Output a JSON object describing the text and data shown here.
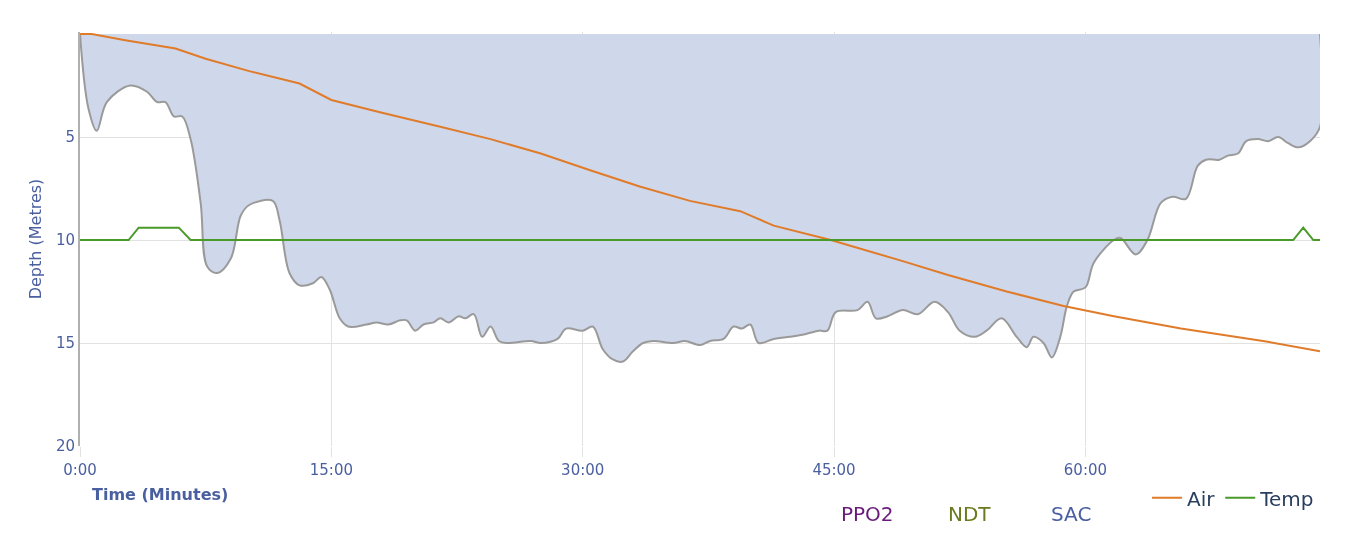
{
  "chart_data": {
    "type": "area",
    "xlabel": "Time (Minutes)",
    "ylabel": "Depth (Metres)",
    "xlim": [
      0,
      74
    ],
    "xticks": [
      {
        "value": 0,
        "label": "0:00"
      },
      {
        "value": 15,
        "label": "15:00"
      },
      {
        "value": 30,
        "label": "30:00"
      },
      {
        "value": 45,
        "label": "45:00"
      },
      {
        "value": 60,
        "label": "60:00"
      }
    ],
    "ylim": [
      20,
      -0.1
    ],
    "yticks": [
      5,
      10,
      15,
      20
    ],
    "grid": true,
    "legend": "bottom right",
    "annotations": [
      "PPO2",
      "NDT",
      "SAC"
    ],
    "series": [
      {
        "color": "#cfd8ea",
        "x": [
          0,
          0.5,
          1.0,
          1.6,
          3.0,
          4.0,
          4.6,
          5.1,
          5.6,
          6.1,
          6.6,
          7.2,
          7.6,
          8.2,
          9.0,
          9.6,
          10.1,
          11.5,
          11.9,
          12.5,
          13.1,
          13.9,
          14.4,
          14.9,
          15.5,
          16.0,
          17.1,
          17.7,
          18.4,
          19.1,
          19.5,
          20.0,
          20.5,
          21.1,
          21.5,
          22.0,
          22.6,
          23.0,
          23.5,
          24.0,
          24.5,
          25.0,
          25.5,
          26.9,
          27.5,
          28.5,
          29.0,
          30.0,
          30.6,
          31.2,
          31.8,
          32.4,
          33.0,
          33.6,
          34.2,
          35.4,
          36.1,
          37.0,
          37.6,
          38.4,
          39.0,
          39.5,
          40.0,
          40.5,
          41.4,
          42.4,
          43.1,
          44.1,
          44.6,
          45.1,
          46.4,
          47.0,
          47.5,
          48.2,
          49.1,
          50.0,
          51.0,
          51.8,
          52.5,
          53.4,
          54.1,
          55.0,
          55.9,
          56.5,
          56.9,
          57.5,
          58.0,
          58.5,
          58.9,
          59.3,
          60.0,
          60.5,
          61.7,
          62.1,
          63.0,
          63.7,
          64.5,
          65.2,
          66.0,
          66.7,
          67.2,
          68.0,
          68.5,
          69.1,
          69.6,
          70.3,
          70.9,
          71.5,
          72.1,
          72.7,
          73.4,
          74.0,
          74.0
        ],
        "values": [
          0,
          3.6,
          4.7,
          3.3,
          2.5,
          2.8,
          3.3,
          3.3,
          4.0,
          4.0,
          5.1,
          8.2,
          11.3,
          11.6,
          10.9,
          8.8,
          8.3,
          8.1,
          9.0,
          11.6,
          12.2,
          12.1,
          11.8,
          12.4,
          13.8,
          14.2,
          14.1,
          14.0,
          14.1,
          13.9,
          13.9,
          14.4,
          14.1,
          14.0,
          13.8,
          14.0,
          13.7,
          13.8,
          13.6,
          14.7,
          14.2,
          14.9,
          15.0,
          14.9,
          15.0,
          14.8,
          14.3,
          14.4,
          14.2,
          15.3,
          15.8,
          15.9,
          15.4,
          15.0,
          14.9,
          15.0,
          14.9,
          15.1,
          14.9,
          14.8,
          14.2,
          14.3,
          14.1,
          15.0,
          14.8,
          14.7,
          14.6,
          14.4,
          14.4,
          13.5,
          13.4,
          13.0,
          13.8,
          13.7,
          13.4,
          13.6,
          13.0,
          13.5,
          14.4,
          14.7,
          14.4,
          13.8,
          14.7,
          15.2,
          14.7,
          15.0,
          15.7,
          14.7,
          13.2,
          12.5,
          12.3,
          11.1,
          10.0,
          9.9,
          10.7,
          10.0,
          8.2,
          7.9,
          8.0,
          6.4,
          6.1,
          6.1,
          5.9,
          5.8,
          5.2,
          5.1,
          5.2,
          5.0,
          5.3,
          5.5,
          5.2,
          4.5,
          0
        ]
      },
      {
        "type": "line",
        "name": "Air",
        "color": "#e07b2a",
        "x": [
          0,
          0.7,
          2.7,
          5.7,
          7.5,
          10.1,
          13.1,
          15.0,
          17.9,
          21.5,
          24.5,
          27.5,
          30.4,
          33.4,
          36.4,
          39.4,
          41.4,
          44.8,
          49.0,
          51.8,
          55.3,
          58.7,
          61.7,
          65.7,
          70.6,
          74.0
        ],
        "values": [
          0,
          0,
          0.3,
          0.7,
          1.2,
          1.8,
          2.4,
          3.2,
          3.8,
          4.5,
          5.1,
          5.8,
          6.6,
          7.4,
          8.1,
          8.6,
          9.3,
          10.0,
          11.0,
          11.7,
          12.5,
          13.2,
          13.7,
          14.3,
          14.9,
          15.4
        ]
      },
      {
        "type": "line",
        "name": "Temp",
        "color": "#4a9a2a",
        "x": [
          0,
          2.9,
          3.5,
          5.9,
          6.6,
          72.4,
          73.0,
          73.6,
          74.0
        ],
        "values": [
          10,
          10,
          9.4,
          9.4,
          10,
          10,
          9.4,
          10,
          10
        ]
      }
    ]
  }
}
